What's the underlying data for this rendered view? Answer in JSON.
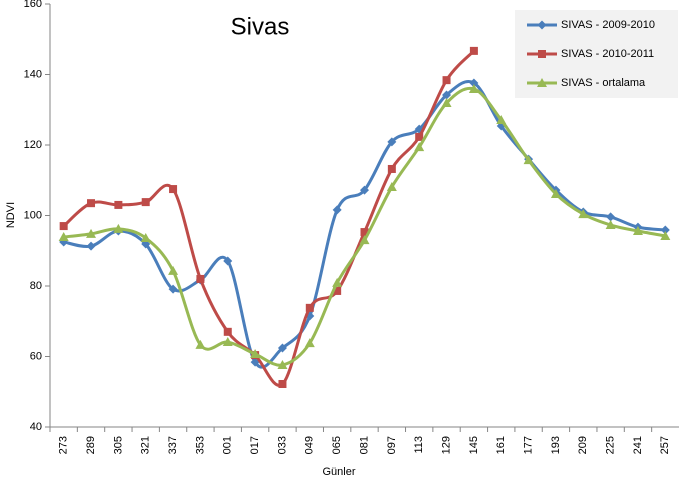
{
  "chart_data": {
    "type": "line",
    "title": "Sivas",
    "xlabel": "Günler",
    "ylabel": "NDVI",
    "categories": [
      "273",
      "289",
      "305",
      "321",
      "337",
      "353",
      "001",
      "017",
      "033",
      "049",
      "065",
      "081",
      "097",
      "113",
      "129",
      "145",
      "161",
      "177",
      "193",
      "209",
      "225",
      "241",
      "257"
    ],
    "series": [
      {
        "name": "SIVAS - 2009-2010",
        "color": "#4a7ebb",
        "marker": "diamond",
        "values": [
          92.5,
          91.3,
          95.6,
          91.9,
          79.1,
          81.7,
          87.1,
          58.4,
          62.4,
          71.5,
          101.6,
          107.2,
          120.9,
          124.5,
          134.2,
          137.6,
          125.4,
          116,
          107.2,
          101,
          99.6,
          96.7,
          95.9
        ]
      },
      {
        "name": "SIVAS - 2010-2011",
        "color": "#be4b48",
        "marker": "square",
        "values": [
          97,
          103.5,
          103,
          103.8,
          107.5,
          82,
          67,
          60.4,
          52.2,
          73.8,
          78.6,
          95.3,
          113.2,
          122.3,
          138.4,
          146.7,
          null,
          null,
          null,
          null,
          null,
          null,
          null
        ]
      },
      {
        "name": "SIVAS - ortalama",
        "color": "#98b954",
        "marker": "triangle",
        "values": [
          93.9,
          94.8,
          96.2,
          93.6,
          84.3,
          63.3,
          64.1,
          60.7,
          57.6,
          63.8,
          80.9,
          93,
          108.1,
          119.4,
          131.9,
          135.9,
          127.1,
          115.7,
          106.1,
          100.4,
          97.3,
          95.6,
          94.2
        ]
      }
    ],
    "ylim": [
      40,
      160
    ],
    "yticks": [
      40,
      60,
      80,
      100,
      120,
      140,
      160
    ],
    "grid": false,
    "smooth": true,
    "legend": "top-right"
  }
}
